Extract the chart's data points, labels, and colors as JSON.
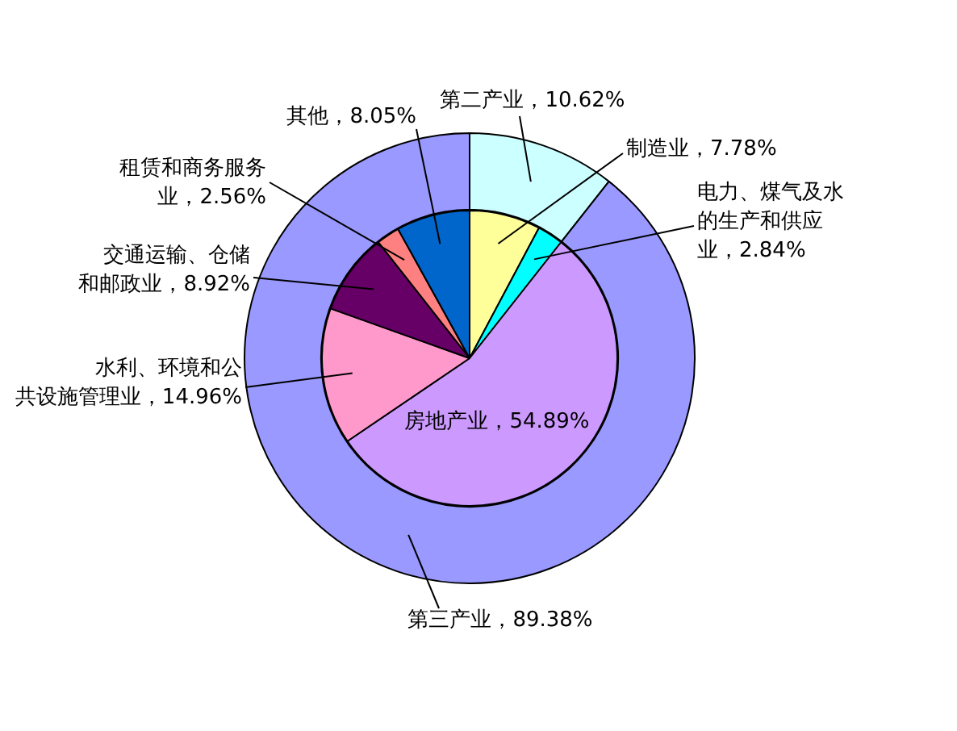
{
  "chart_data": [
    {
      "type": "donut",
      "categories": [
        "第二产业",
        "第三产业"
      ],
      "values": [
        10.62,
        89.38
      ],
      "value_labels": [
        "10.62%",
        "89.38%"
      ],
      "colors": [
        "#ccffff",
        "#9999ff"
      ]
    },
    {
      "type": "pie",
      "categories": [
        "制造业",
        "电力、煤气及水的生产和供应业",
        "房地产业",
        "水利、环境和公共设施管理业",
        "交通运输、仓储和邮政业",
        "租赁和商务服务业",
        "其他"
      ],
      "values": [
        7.78,
        2.84,
        54.89,
        14.96,
        8.92,
        2.56,
        8.05
      ],
      "value_labels": [
        "7.78%",
        "2.84%",
        "54.89%",
        "14.96%",
        "8.92%",
        "2.56%",
        "8.05%"
      ],
      "colors": [
        "#ffff99",
        "#00ffff",
        "#cc99ff",
        "#ff99cc",
        "#660066",
        "#ff8080",
        "#0066cc"
      ]
    }
  ]
}
